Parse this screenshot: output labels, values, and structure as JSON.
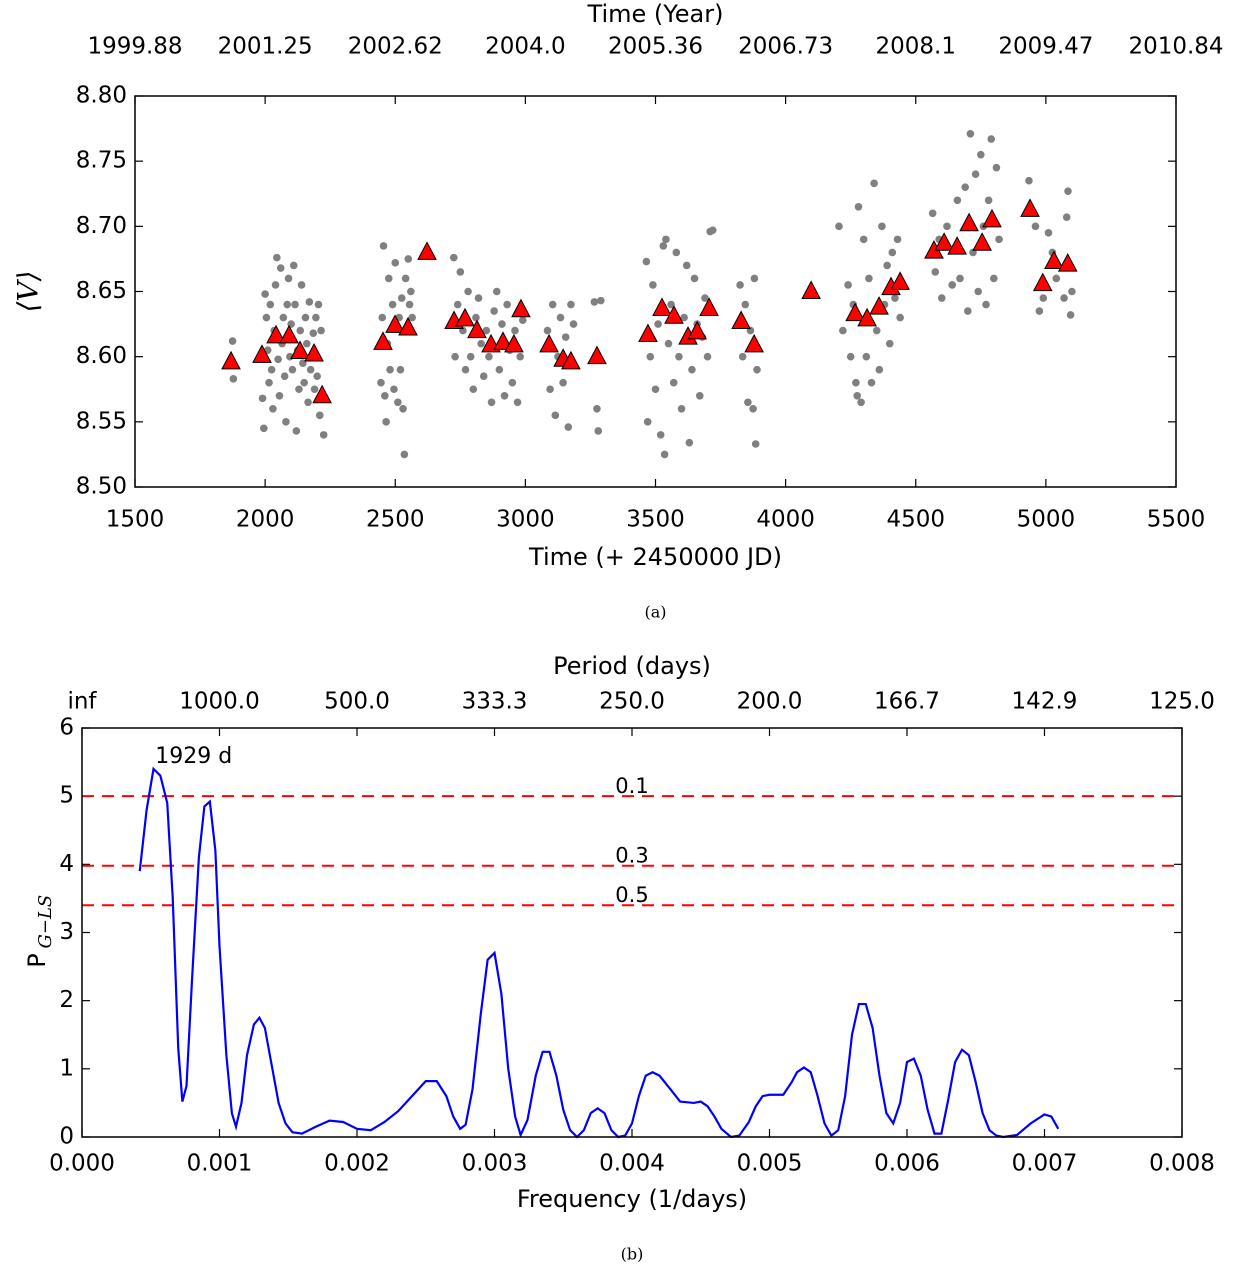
{
  "chart_data": [
    {
      "type": "scatter",
      "caption": "(a)",
      "xlabel": "Time (+ 2450000 JD)",
      "ylabel": "⟨V⟩",
      "x2label": "Time (Year)",
      "xlim": [
        1500,
        5500
      ],
      "xticks": [
        1500,
        2000,
        2500,
        3000,
        3500,
        4000,
        4500,
        5000,
        5500
      ],
      "ylim": [
        8.5,
        8.8
      ],
      "yticks": [
        {
          "value": 8.5,
          "label": "8.50"
        },
        {
          "value": 8.55,
          "label": "8.55"
        },
        {
          "value": 8.6,
          "label": "8.60"
        },
        {
          "value": 8.65,
          "label": "8.65"
        },
        {
          "value": 8.7,
          "label": "8.70"
        },
        {
          "value": 8.75,
          "label": "8.75"
        },
        {
          "value": 8.8,
          "label": "8.80"
        }
      ],
      "x2lim": [
        1999.88,
        2010.84
      ],
      "x2ticks": [
        1999.88,
        2001.25,
        2002.62,
        {
          "value": 2003.99,
          "label": "2004.0"
        },
        2005.36,
        2006.73,
        {
          "value": 2008.1,
          "label": "2008.1"
        },
        2009.47,
        2010.84
      ],
      "series": [
        {
          "color": "#808080",
          "marker": "circle",
          "x": [
            1875,
            1878,
            1990,
            1995,
            2000,
            2005,
            2010,
            2015,
            2020,
            2025,
            2030,
            2035,
            2040,
            2045,
            2050,
            2055,
            2060,
            2065,
            2070,
            2075,
            2080,
            2085,
            2090,
            2095,
            2100,
            2105,
            2110,
            2115,
            2120,
            2125,
            2130,
            2135,
            2140,
            2145,
            2150,
            2155,
            2160,
            2165,
            2170,
            2175,
            2180,
            2185,
            2190,
            2195,
            2200,
            2205,
            2210,
            2215,
            2225,
            2445,
            2450,
            2455,
            2460,
            2465,
            2470,
            2475,
            2480,
            2490,
            2495,
            2500,
            2510,
            2515,
            2520,
            2525,
            2530,
            2535,
            2540,
            2545,
            2550,
            2555,
            2560,
            2565,
            2725,
            2730,
            2740,
            2750,
            2760,
            2770,
            2780,
            2790,
            2800,
            2810,
            2820,
            2830,
            2840,
            2850,
            2860,
            2870,
            2880,
            2890,
            2900,
            2910,
            2920,
            2930,
            2940,
            2950,
            2960,
            2970,
            2980,
            2990,
            3085,
            3095,
            3105,
            3115,
            3125,
            3135,
            3145,
            3155,
            3165,
            3175,
            3185,
            3265,
            3275,
            3280,
            3290,
            3465,
            3470,
            3480,
            3490,
            3500,
            3510,
            3520,
            3530,
            3535,
            3540,
            3550,
            3560,
            3570,
            3580,
            3590,
            3600,
            3610,
            3620,
            3630,
            3640,
            3650,
            3660,
            3670,
            3680,
            3690,
            3700,
            3710,
            3720,
            3825,
            3835,
            3845,
            3855,
            3865,
            3875,
            3880,
            3885,
            3890,
            4205,
            4220,
            4240,
            4250,
            4260,
            4270,
            4275,
            4280,
            4290,
            4300,
            4310,
            4320,
            4330,
            4340,
            4350,
            4360,
            4370,
            4380,
            4390,
            4400,
            4410,
            4420,
            4430,
            4440,
            4565,
            4575,
            4590,
            4600,
            4620,
            4640,
            4660,
            4670,
            4690,
            4700,
            4710,
            4720,
            4730,
            4740,
            4750,
            4760,
            4770,
            4780,
            4790,
            4800,
            4810,
            4820,
            4935,
            4960,
            4975,
            4990,
            5010,
            5025,
            5040,
            5070,
            5080,
            5085,
            5095,
            5100
          ],
          "values": [
            8.612,
            8.583,
            8.568,
            8.545,
            8.648,
            8.63,
            8.605,
            8.58,
            8.64,
            8.59,
            8.56,
            8.62,
            8.655,
            8.676,
            8.598,
            8.57,
            8.668,
            8.61,
            8.63,
            8.585,
            8.55,
            8.64,
            8.66,
            8.6,
            8.625,
            8.59,
            8.67,
            8.64,
            8.543,
            8.605,
            8.575,
            8.62,
            8.655,
            8.595,
            8.58,
            8.63,
            8.61,
            8.565,
            8.642,
            8.59,
            8.6,
            8.618,
            8.575,
            8.63,
            8.585,
            8.64,
            8.555,
            8.62,
            8.54,
            8.58,
            8.63,
            8.685,
            8.57,
            8.55,
            8.61,
            8.66,
            8.59,
            8.64,
            8.575,
            8.672,
            8.565,
            8.63,
            8.59,
            8.645,
            8.56,
            8.525,
            8.66,
            8.62,
            8.675,
            8.64,
            8.65,
            8.63,
            8.676,
            8.6,
            8.64,
            8.665,
            8.62,
            8.59,
            8.65,
            8.6,
            8.575,
            8.63,
            8.645,
            8.61,
            8.585,
            8.62,
            8.6,
            8.565,
            8.635,
            8.65,
            8.59,
            8.625,
            8.57,
            8.64,
            8.605,
            8.58,
            8.62,
            8.565,
            8.6,
            8.628,
            8.62,
            8.575,
            8.64,
            8.555,
            8.6,
            8.63,
            8.58,
            8.615,
            8.546,
            8.64,
            8.625,
            8.642,
            8.56,
            8.543,
            8.643,
            8.673,
            8.55,
            8.6,
            8.655,
            8.575,
            8.625,
            8.54,
            8.685,
            8.525,
            8.69,
            8.61,
            8.64,
            8.58,
            8.68,
            8.6,
            8.56,
            8.63,
            8.67,
            8.534,
            8.59,
            8.66,
            8.625,
            8.57,
            8.615,
            8.645,
            8.6,
            8.696,
            8.697,
            8.655,
            8.6,
            8.64,
            8.565,
            8.62,
            8.56,
            8.66,
            8.533,
            8.59,
            8.7,
            8.62,
            8.655,
            8.6,
            8.64,
            8.58,
            8.57,
            8.715,
            8.565,
            8.69,
            8.6,
            8.66,
            8.58,
            8.733,
            8.62,
            8.59,
            8.7,
            8.64,
            8.67,
            8.61,
            8.68,
            8.645,
            8.69,
            8.63,
            8.71,
            8.665,
            8.69,
            8.645,
            8.7,
            8.655,
            8.72,
            8.66,
            8.73,
            8.635,
            8.771,
            8.68,
            8.74,
            8.65,
            8.755,
            8.7,
            8.64,
            8.72,
            8.767,
            8.66,
            8.745,
            8.69,
            8.735,
            8.7,
            8.635,
            8.645,
            8.695,
            8.68,
            8.66,
            8.645,
            8.707,
            8.727,
            8.632,
            8.65
          ]
        },
        {
          "color": "#ff0000",
          "marker": "triangle",
          "x": [
            1869,
            1988,
            2042,
            2092,
            2134,
            2188,
            2219,
            2453,
            2499,
            2549,
            2622,
            2726,
            2768,
            2814,
            2868,
            2914,
            2956,
            2983,
            3091,
            3145,
            3175,
            3275,
            3471,
            3525,
            3571,
            3625,
            3660,
            3706,
            3829,
            3879,
            4098,
            4267,
            4313,
            4359,
            4405,
            4440,
            4570,
            4609,
            4659,
            4705,
            4755,
            4793,
            4939,
            4988,
            5031,
            5084
          ],
          "values": [
            8.596,
            8.601,
            8.616,
            8.616,
            8.604,
            8.602,
            8.57,
            8.611,
            8.624,
            8.622,
            8.68,
            8.627,
            8.629,
            8.62,
            8.609,
            8.611,
            8.609,
            8.636,
            8.609,
            8.598,
            8.596,
            8.6,
            8.617,
            8.637,
            8.631,
            8.615,
            8.619,
            8.637,
            8.627,
            8.609,
            8.65,
            8.633,
            8.629,
            8.638,
            8.653,
            8.657,
            8.681,
            8.687,
            8.684,
            8.702,
            8.687,
            8.705,
            8.713,
            8.656,
            8.673,
            8.671
          ]
        }
      ]
    },
    {
      "type": "line",
      "caption": "(b)",
      "xlabel": "Frequency (1/days)",
      "ylabel": "P",
      "ylabel_subscript": "G−LS",
      "x2label": "Period (days)",
      "xlim": [
        0,
        0.008
      ],
      "xticks": [
        {
          "value": 0,
          "label": "0.000"
        },
        {
          "value": 0.001,
          "label": "0.001"
        },
        {
          "value": 0.002,
          "label": "0.002"
        },
        {
          "value": 0.003,
          "label": "0.003"
        },
        {
          "value": 0.004,
          "label": "0.004"
        },
        {
          "value": 0.005,
          "label": "0.005"
        },
        {
          "value": 0.006,
          "label": "0.006"
        },
        {
          "value": 0.007,
          "label": "0.007"
        },
        {
          "value": 0.008,
          "label": "0.008"
        }
      ],
      "ylim": [
        0,
        6
      ],
      "yticks": [
        0,
        1,
        2,
        3,
        4,
        5,
        6
      ],
      "x2scale": "reciprocal",
      "x2ticks": [
        {
          "value": null,
          "label": "inf"
        },
        {
          "value": 1000,
          "label": "1000.0"
        },
        {
          "value": 500,
          "label": "500.0"
        },
        {
          "value": 333.33,
          "label": "333.3"
        },
        {
          "value": 250,
          "label": "250.0"
        },
        {
          "value": 200,
          "label": "200.0"
        },
        {
          "value": 166.67,
          "label": "166.7"
        },
        {
          "value": 142.86,
          "label": "142.9"
        },
        {
          "value": 125,
          "label": "125.0"
        }
      ],
      "hline_color": "#ff0000",
      "hlines": [
        {
          "value": 5.0,
          "label": "0.1"
        },
        {
          "value": 3.98,
          "label": "0.3"
        },
        {
          "value": 3.4,
          "label": "0.5"
        }
      ],
      "annotation": {
        "text": "1929 d",
        "x": 0.000518,
        "y": 5.4,
        "color": "#0000ff"
      },
      "series": [
        {
          "color": "#0000ff",
          "x": [
            0.00042,
            0.00047,
            0.00052,
            0.00057,
            0.00062,
            0.00066,
            0.0007,
            0.00073,
            0.00076,
            0.0008,
            0.00085,
            0.00089,
            0.00093,
            0.00097,
            0.001,
            0.00105,
            0.00109,
            0.00112,
            0.00116,
            0.0012,
            0.00125,
            0.00129,
            0.00133,
            0.00138,
            0.00143,
            0.00148,
            0.00153,
            0.0016,
            0.0017,
            0.0018,
            0.0019,
            0.002,
            0.0021,
            0.0022,
            0.0023,
            0.0024,
            0.0025,
            0.00258,
            0.00265,
            0.0027,
            0.00275,
            0.00279,
            0.00284,
            0.0029,
            0.00295,
            0.003,
            0.00305,
            0.0031,
            0.00315,
            0.00319,
            0.00324,
            0.0033,
            0.00335,
            0.0034,
            0.00345,
            0.0035,
            0.00355,
            0.0036,
            0.00365,
            0.0037,
            0.00375,
            0.0038,
            0.00385,
            0.0039,
            0.00395,
            0.004,
            0.00405,
            0.0041,
            0.00415,
            0.0042,
            0.00428,
            0.00435,
            0.00445,
            0.0045,
            0.00455,
            0.0046,
            0.00465,
            0.00472,
            0.00478,
            0.00485,
            0.0049,
            0.00495,
            0.005,
            0.0051,
            0.00516,
            0.0052,
            0.00525,
            0.0053,
            0.00535,
            0.0054,
            0.00545,
            0.0055,
            0.00555,
            0.0056,
            0.00565,
            0.0057,
            0.00575,
            0.0058,
            0.00585,
            0.0059,
            0.00595,
            0.006,
            0.00605,
            0.0061,
            0.00615,
            0.0062,
            0.00625,
            0.0063,
            0.00635,
            0.0064,
            0.00645,
            0.0065,
            0.00655,
            0.0066,
            0.00665,
            0.0067,
            0.0068,
            0.0069,
            0.007,
            0.00705,
            0.0071
          ],
          "values": [
            3.9,
            4.8,
            5.4,
            5.3,
            4.9,
            3.5,
            1.3,
            0.52,
            0.75,
            2.3,
            4.1,
            4.85,
            4.92,
            4.2,
            2.8,
            1.2,
            0.35,
            0.15,
            0.5,
            1.2,
            1.65,
            1.75,
            1.6,
            1.05,
            0.5,
            0.2,
            0.07,
            0.05,
            0.15,
            0.24,
            0.22,
            0.12,
            0.1,
            0.22,
            0.38,
            0.6,
            0.82,
            0.82,
            0.6,
            0.3,
            0.12,
            0.18,
            0.7,
            1.8,
            2.6,
            2.7,
            2.1,
            1.0,
            0.3,
            0.03,
            0.25,
            0.9,
            1.25,
            1.25,
            0.9,
            0.4,
            0.1,
            0.0,
            0.1,
            0.35,
            0.42,
            0.35,
            0.1,
            0.0,
            0.02,
            0.2,
            0.6,
            0.9,
            0.95,
            0.9,
            0.7,
            0.52,
            0.5,
            0.52,
            0.45,
            0.3,
            0.12,
            0.0,
            0.02,
            0.22,
            0.45,
            0.6,
            0.62,
            0.62,
            0.8,
            0.95,
            1.02,
            0.95,
            0.6,
            0.2,
            0.02,
            0.1,
            0.6,
            1.5,
            1.95,
            1.95,
            1.6,
            0.9,
            0.35,
            0.2,
            0.5,
            1.1,
            1.15,
            0.9,
            0.4,
            0.05,
            0.05,
            0.55,
            1.1,
            1.28,
            1.2,
            0.8,
            0.35,
            0.1,
            0.02,
            0.0,
            0.03,
            0.2,
            0.33,
            0.3,
            0.12
          ]
        }
      ]
    }
  ]
}
